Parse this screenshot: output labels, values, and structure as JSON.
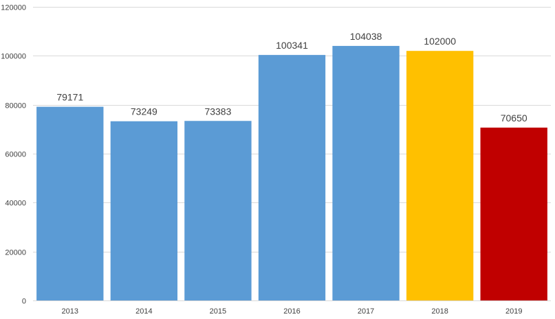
{
  "chart_data": {
    "type": "bar",
    "categories": [
      "2013",
      "2014",
      "2015",
      "2016",
      "2017",
      "2018",
      "2019"
    ],
    "values": [
      79171,
      73249,
      73383,
      100341,
      104038,
      102000,
      70650
    ],
    "data_labels": [
      "79171",
      "73249",
      "73383",
      "100341",
      "104038",
      "102000",
      "70650"
    ],
    "bar_colors": [
      "#5b9bd5",
      "#5b9bd5",
      "#5b9bd5",
      "#5b9bd5",
      "#5b9bd5",
      "#ffc000",
      "#c00000"
    ],
    "ylim": [
      0,
      120000
    ],
    "yticks": [
      0,
      20000,
      40000,
      60000,
      80000,
      100000,
      120000
    ],
    "ytick_labels": [
      "0",
      "20000",
      "40000",
      "60000",
      "80000",
      "100000",
      "120000"
    ],
    "grid": true,
    "legend": false,
    "title": "",
    "xlabel": "",
    "ylabel": ""
  }
}
